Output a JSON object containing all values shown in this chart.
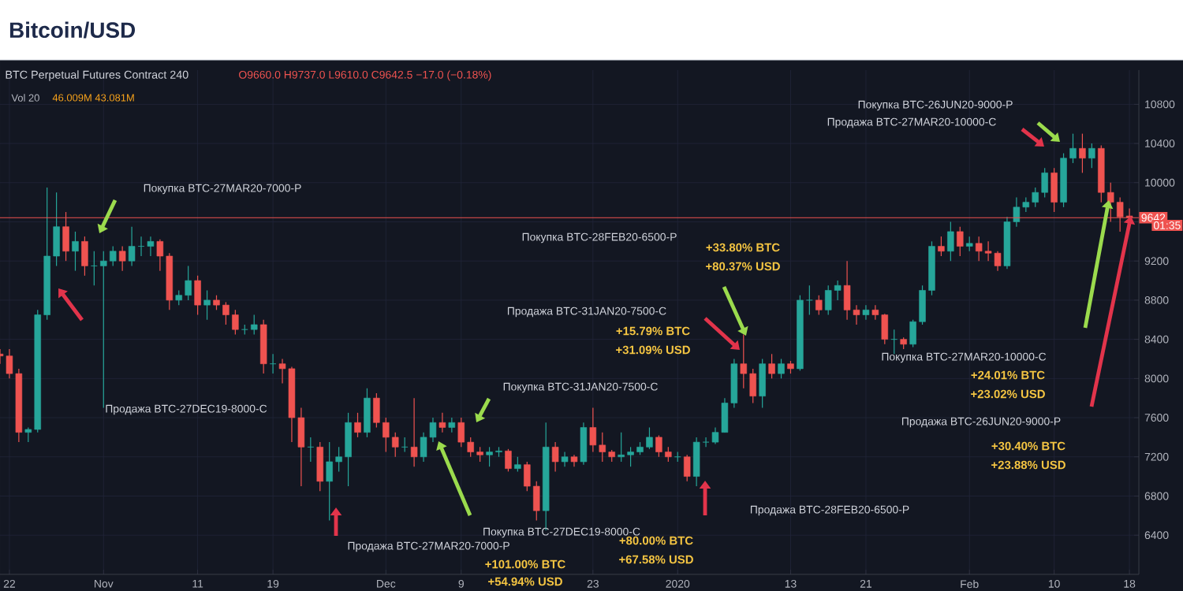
{
  "chart_data": {
    "type": "candlestick",
    "title": "Bitcoin/USD",
    "x": [
      "2019-10-21",
      "2019-10-22",
      "2019-10-23",
      "2019-10-24",
      "2019-10-25",
      "2019-10-26",
      "2019-10-27",
      "2019-10-28",
      "2019-10-29",
      "2019-10-30",
      "2019-10-31",
      "2019-11-01",
      "2019-11-02",
      "2019-11-03",
      "2019-11-04",
      "2019-11-05",
      "2019-11-06",
      "2019-11-07",
      "2019-11-08",
      "2019-11-09",
      "2019-11-10",
      "2019-11-11",
      "2019-11-12",
      "2019-11-13",
      "2019-11-14",
      "2019-11-15",
      "2019-11-16",
      "2019-11-17",
      "2019-11-18",
      "2019-11-19",
      "2019-11-20",
      "2019-11-21",
      "2019-11-22",
      "2019-11-23",
      "2019-11-24",
      "2019-11-25",
      "2019-11-26",
      "2019-11-27",
      "2019-11-28",
      "2019-11-29",
      "2019-11-30",
      "2019-12-01",
      "2019-12-02",
      "2019-12-03",
      "2019-12-04",
      "2019-12-05",
      "2019-12-06",
      "2019-12-07",
      "2019-12-08",
      "2019-12-09",
      "2019-12-10",
      "2019-12-11",
      "2019-12-12",
      "2019-12-13",
      "2019-12-14",
      "2019-12-15",
      "2019-12-16",
      "2019-12-17",
      "2019-12-18",
      "2019-12-19",
      "2019-12-20",
      "2019-12-21",
      "2019-12-22",
      "2019-12-23",
      "2019-12-24",
      "2019-12-25",
      "2019-12-26",
      "2019-12-27",
      "2019-12-28",
      "2019-12-29",
      "2019-12-30",
      "2019-12-31",
      "2020-01-01",
      "2020-01-02",
      "2020-01-03",
      "2020-01-04",
      "2020-01-05",
      "2020-01-06",
      "2020-01-07",
      "2020-01-08",
      "2020-01-09",
      "2020-01-10",
      "2020-01-11",
      "2020-01-12",
      "2020-01-13",
      "2020-01-14",
      "2020-01-15",
      "2020-01-16",
      "2020-01-17",
      "2020-01-18",
      "2020-01-19",
      "2020-01-20",
      "2020-01-21",
      "2020-01-22",
      "2020-01-23",
      "2020-01-24",
      "2020-01-25",
      "2020-01-26",
      "2020-01-27",
      "2020-01-28",
      "2020-01-29",
      "2020-01-30",
      "2020-01-31",
      "2020-02-01",
      "2020-02-02",
      "2020-02-03",
      "2020-02-04",
      "2020-02-05",
      "2020-02-06",
      "2020-02-07",
      "2020-02-08",
      "2020-02-09",
      "2020-02-10",
      "2020-02-11",
      "2020-02-12",
      "2020-02-13",
      "2020-02-14",
      "2020-02-15",
      "2020-02-16",
      "2020-02-17",
      "2020-02-18"
    ],
    "ohlc": [
      [
        8250,
        8300,
        8150,
        8230
      ],
      [
        8230,
        8300,
        8000,
        8050
      ],
      [
        8050,
        8100,
        7350,
        7450
      ],
      [
        7450,
        7500,
        7350,
        7480
      ],
      [
        7480,
        8700,
        7450,
        8650
      ],
      [
        8650,
        9950,
        8600,
        9250
      ],
      [
        9250,
        9900,
        9150,
        9550
      ],
      [
        9550,
        9700,
        9200,
        9300
      ],
      [
        9300,
        9500,
        9100,
        9400
      ],
      [
        9400,
        9450,
        9050,
        9150
      ],
      [
        9150,
        9300,
        8950,
        9150
      ],
      [
        9150,
        9300,
        7700,
        9200
      ],
      [
        9200,
        9350,
        9150,
        9300
      ],
      [
        9300,
        9350,
        9100,
        9200
      ],
      [
        9200,
        9550,
        9150,
        9350
      ],
      [
        9350,
        9450,
        9250,
        9350
      ],
      [
        9350,
        9450,
        9250,
        9400
      ],
      [
        9400,
        9420,
        9100,
        9250
      ],
      [
        9250,
        9280,
        8700,
        8800
      ],
      [
        8800,
        8900,
        8750,
        8850
      ],
      [
        8850,
        9150,
        8800,
        9000
      ],
      [
        9000,
        9050,
        8650,
        8750
      ],
      [
        8750,
        8900,
        8600,
        8800
      ],
      [
        8800,
        8850,
        8700,
        8750
      ],
      [
        8750,
        8780,
        8550,
        8650
      ],
      [
        8650,
        8700,
        8450,
        8500
      ],
      [
        8500,
        8550,
        8450,
        8500
      ],
      [
        8500,
        8650,
        8450,
        8550
      ],
      [
        8550,
        8600,
        8050,
        8150
      ],
      [
        8150,
        8250,
        8050,
        8150
      ],
      [
        8150,
        8200,
        7950,
        8100
      ],
      [
        8100,
        8120,
        7350,
        7600
      ],
      [
        7600,
        7700,
        6900,
        7300
      ],
      [
        7300,
        7400,
        7150,
        7300
      ],
      [
        7300,
        7350,
        6850,
        6950
      ],
      [
        6950,
        7350,
        6550,
        7150
      ],
      [
        7150,
        7300,
        7050,
        7200
      ],
      [
        7200,
        7650,
        6900,
        7550
      ],
      [
        7550,
        7650,
        7400,
        7450
      ],
      [
        7450,
        7900,
        7400,
        7800
      ],
      [
        7800,
        7850,
        7500,
        7550
      ],
      [
        7550,
        7600,
        7250,
        7400
      ],
      [
        7400,
        7450,
        7200,
        7300
      ],
      [
        7300,
        7400,
        7250,
        7300
      ],
      [
        7300,
        7800,
        7100,
        7200
      ],
      [
        7200,
        7450,
        7150,
        7400
      ],
      [
        7400,
        7600,
        7350,
        7550
      ],
      [
        7550,
        7650,
        7450,
        7500
      ],
      [
        7500,
        7600,
        7450,
        7550
      ],
      [
        7550,
        7600,
        7300,
        7350
      ],
      [
        7350,
        7400,
        7200,
        7250
      ],
      [
        7250,
        7300,
        7150,
        7220
      ],
      [
        7220,
        7300,
        7100,
        7250
      ],
      [
        7250,
        7300,
        7200,
        7260
      ],
      [
        7260,
        7280,
        7050,
        7080
      ],
      [
        7080,
        7200,
        7050,
        7120
      ],
      [
        7120,
        7150,
        6850,
        6900
      ],
      [
        6900,
        6950,
        6550,
        6650
      ],
      [
        6650,
        7550,
        6450,
        7300
      ],
      [
        7300,
        7350,
        7050,
        7150
      ],
      [
        7150,
        7250,
        7100,
        7200
      ],
      [
        7200,
        7220,
        7100,
        7150
      ],
      [
        7150,
        7550,
        7120,
        7500
      ],
      [
        7500,
        7700,
        7250,
        7320
      ],
      [
        7320,
        7450,
        7150,
        7250
      ],
      [
        7250,
        7270,
        7150,
        7200
      ],
      [
        7200,
        7450,
        7150,
        7220
      ],
      [
        7220,
        7300,
        7100,
        7250
      ],
      [
        7250,
        7350,
        7220,
        7300
      ],
      [
        7300,
        7500,
        7280,
        7400
      ],
      [
        7400,
        7420,
        7200,
        7250
      ],
      [
        7250,
        7300,
        7150,
        7200
      ],
      [
        7200,
        7250,
        7150,
        7200
      ],
      [
        7200,
        7220,
        6950,
        7000
      ],
      [
        7000,
        7400,
        6900,
        7350
      ],
      [
        7350,
        7400,
        7300,
        7350
      ],
      [
        7350,
        7500,
        7330,
        7450
      ],
      [
        7450,
        7800,
        7450,
        7750
      ],
      [
        7750,
        8200,
        7700,
        8150
      ],
      [
        8150,
        8450,
        7900,
        8050
      ],
      [
        8050,
        8100,
        7750,
        7820
      ],
      [
        7820,
        8200,
        7700,
        8150
      ],
      [
        8150,
        8250,
        8000,
        8050
      ],
      [
        8050,
        8200,
        8000,
        8150
      ],
      [
        8150,
        8180,
        8050,
        8100
      ],
      [
        8100,
        8850,
        8080,
        8800
      ],
      [
        8800,
        8950,
        8650,
        8800
      ],
      [
        8800,
        8850,
        8650,
        8700
      ],
      [
        8700,
        8950,
        8650,
        8900
      ],
      [
        8900,
        9000,
        8800,
        8950
      ],
      [
        8950,
        9200,
        8600,
        8700
      ],
      [
        8700,
        8750,
        8550,
        8650
      ],
      [
        8650,
        8750,
        8600,
        8700
      ],
      [
        8700,
        8750,
        8600,
        8650
      ],
      [
        8650,
        8660,
        8350,
        8400
      ],
      [
        8400,
        8500,
        8250,
        8400
      ],
      [
        8400,
        8420,
        8300,
        8350
      ],
      [
        8350,
        8600,
        8320,
        8580
      ],
      [
        8580,
        8950,
        8550,
        8900
      ],
      [
        8900,
        9400,
        8850,
        9350
      ],
      [
        9350,
        9450,
        9250,
        9300
      ],
      [
        9300,
        9600,
        9200,
        9500
      ],
      [
        9500,
        9550,
        9250,
        9350
      ],
      [
        9350,
        9450,
        9300,
        9380
      ],
      [
        9380,
        9450,
        9200,
        9300
      ],
      [
        9300,
        9400,
        9200,
        9280
      ],
      [
        9280,
        9300,
        9100,
        9150
      ],
      [
        9150,
        9650,
        9120,
        9600
      ],
      [
        9600,
        9850,
        9550,
        9750
      ],
      [
        9750,
        9850,
        9700,
        9800
      ],
      [
        9800,
        9950,
        9750,
        9900
      ],
      [
        9900,
        10150,
        9850,
        10100
      ],
      [
        10100,
        10150,
        9700,
        9800
      ],
      [
        9800,
        10300,
        9750,
        10250
      ],
      [
        10250,
        10500,
        10200,
        10350
      ],
      [
        10350,
        10500,
        10100,
        10250
      ],
      [
        10250,
        10400,
        10150,
        10350
      ],
      [
        10350,
        10380,
        9800,
        9900
      ],
      [
        9900,
        10000,
        9600,
        9800
      ],
      [
        9800,
        9850,
        9500,
        9650
      ],
      [
        9660,
        9737,
        9610,
        9642.5
      ]
    ],
    "colors": [
      "#ef5350",
      "#ef5350",
      "#ef5350",
      "#26a69a",
      "#26a69a",
      "#26a69a",
      "#26a69a",
      "#ef5350",
      "#26a69a",
      "#ef5350",
      "#26a69a",
      "#26a69a",
      "#26a69a",
      "#ef5350",
      "#26a69a",
      "#26a69a",
      "#26a69a",
      "#ef5350",
      "#ef5350",
      "#26a69a",
      "#26a69a",
      "#ef5350",
      "#26a69a",
      "#ef5350",
      "#ef5350",
      "#ef5350",
      "#26a69a",
      "#26a69a",
      "#ef5350",
      "#26a69a",
      "#ef5350",
      "#ef5350",
      "#ef5350",
      "#26a69a",
      "#ef5350",
      "#26a69a",
      "#26a69a",
      "#26a69a",
      "#ef5350",
      "#26a69a",
      "#ef5350",
      "#ef5350",
      "#ef5350",
      "#26a69a",
      "#ef5350",
      "#26a69a",
      "#26a69a",
      "#ef5350",
      "#26a69a",
      "#ef5350",
      "#ef5350",
      "#ef5350",
      "#26a69a",
      "#26a69a",
      "#ef5350",
      "#26a69a",
      "#ef5350",
      "#ef5350",
      "#26a69a",
      "#ef5350",
      "#26a69a",
      "#ef5350",
      "#26a69a",
      "#ef5350",
      "#ef5350",
      "#ef5350",
      "#26a69a",
      "#26a69a",
      "#26a69a",
      "#26a69a",
      "#ef5350",
      "#ef5350",
      "#26a69a",
      "#ef5350",
      "#26a69a",
      "#26a69a",
      "#26a69a",
      "#26a69a",
      "#26a69a",
      "#ef5350",
      "#ef5350",
      "#26a69a",
      "#ef5350",
      "#26a69a",
      "#ef5350",
      "#26a69a",
      "#26a69a",
      "#ef5350",
      "#26a69a",
      "#26a69a",
      "#ef5350",
      "#ef5350",
      "#26a69a",
      "#ef5350",
      "#ef5350",
      "#26a69a",
      "#ef5350",
      "#26a69a",
      "#26a69a",
      "#26a69a",
      "#ef5350",
      "#26a69a",
      "#ef5350",
      "#26a69a",
      "#ef5350",
      "#ef5350",
      "#ef5350",
      "#26a69a",
      "#26a69a",
      "#26a69a",
      "#26a69a",
      "#26a69a",
      "#ef5350",
      "#26a69a",
      "#26a69a",
      "#ef5350",
      "#26a69a",
      "#ef5350",
      "#ef5350",
      "#ef5350",
      "#ef5350"
    ],
    "xlim": [
      "2019-10-21",
      "2020-02-19"
    ],
    "xticks": [
      {
        "value": "2019-10-22",
        "label": "22"
      },
      {
        "value": "2019-11-01",
        "label": "Nov"
      },
      {
        "value": "2019-11-11",
        "label": "11"
      },
      {
        "value": "2019-11-19",
        "label": "19"
      },
      {
        "value": "2019-12-01",
        "label": "Dec"
      },
      {
        "value": "2019-12-09",
        "label": "9"
      },
      {
        "value": "2019-12-23",
        "label": "23"
      },
      {
        "value": "2020-01-01",
        "label": "2020"
      },
      {
        "value": "2020-01-13",
        "label": "13"
      },
      {
        "value": "2020-01-21",
        "label": "21"
      },
      {
        "value": "2020-02-01",
        "label": "Feb"
      },
      {
        "value": "2020-02-10",
        "label": "10"
      },
      {
        "value": "2020-02-18",
        "label": "18"
      }
    ],
    "ylim": [
      6000,
      11150
    ],
    "yticks": [
      6400,
      6800,
      7200,
      7600,
      8000,
      8400,
      8800,
      9200,
      {
        "value": 9600,
        "label": null
      },
      10000,
      10400,
      10800
    ],
    "grid": true,
    "ref_lines": [
      {
        "axis": "y",
        "value": 9642,
        "label": "9642",
        "color": "#ef5350"
      }
    ],
    "annotations": [
      "BTC Perpetual Futures Contract 240",
      "O9660.0 H9737.0 L9610.0 C9642.5 −17.0 (−0.18%)",
      "Vol 20",
      "46.009M 43.081M",
      "Покупка BTC-27MAR20-7000-P",
      "Продажа BTC-27DEC19-8000-C",
      "Продажа BTC-27MAR20-7000-P",
      "+101.00% BTC",
      "+54.94% USD",
      "Покупка BTC-27DEC19-8000-C",
      "+80.00% BTC",
      "+67.58% USD",
      "Покупка BTC-31JAN20-7500-C",
      "Продажа BTC-31JAN20-7500-C",
      "+15.79% BTC",
      "+31.09% USD",
      "Покупка BTC-28FEB20-6500-P",
      "+33.80% BTC",
      "+80.37% USD",
      "Продажа BTC-28FEB20-6500-P",
      "Покупка BTC-26JUN20-9000-P",
      "Продажа BTC-27MAR20-10000-C",
      "Покупка BTC-27MAR20-10000-C",
      "+24.01% BTC",
      "+23.02% USD",
      "Продажа BTC-26JUN20-9000-P",
      "+30.40% BTC",
      "+23.88% USD",
      "01:35"
    ]
  }
}
